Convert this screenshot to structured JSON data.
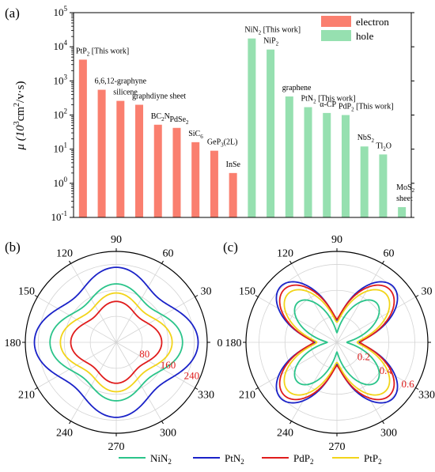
{
  "chart_data": [
    {
      "panel_label": "(a)",
      "type": "bar",
      "ylabel_parts": [
        "μ (10",
        "3",
        "cm",
        "2",
        "/v·s)"
      ],
      "yscale": "log",
      "ylim": [
        0.1,
        100000
      ],
      "ytick_labels": [
        {
          "base": "10",
          "exp": "-1",
          "value": 0.1
        },
        {
          "base": "10",
          "exp": "0",
          "value": 1
        },
        {
          "base": "10",
          "exp": "1",
          "value": 10
        },
        {
          "base": "10",
          "exp": "2",
          "value": 100
        },
        {
          "base": "10",
          "exp": "3",
          "value": 1000
        },
        {
          "base": "10",
          "exp": "4",
          "value": 10000
        },
        {
          "base": "10",
          "exp": "5",
          "value": 100000
        }
      ],
      "legend_position": "top-right",
      "series": [
        {
          "name": "electron",
          "color": "#fa7f6f"
        },
        {
          "name": "hole",
          "color": "#96e0b0"
        }
      ],
      "bars": [
        {
          "parts": [
            [
              "PtP",
              ""
            ],
            [
              "2",
              "sub"
            ],
            [
              " [This work]",
              ""
            ]
          ],
          "value": 4200,
          "series": "electron"
        },
        {
          "parts": [
            [
              "6,6,12-graphyne",
              ""
            ]
          ],
          "value": 550,
          "series": "electron"
        },
        {
          "parts": [
            [
              "silicene",
              ""
            ]
          ],
          "value": 260,
          "series": "electron"
        },
        {
          "parts": [
            [
              "graphdiyne sheet",
              ""
            ]
          ],
          "value": 200,
          "series": "electron"
        },
        {
          "parts": [
            [
              "BC",
              ""
            ],
            [
              "2",
              "sub"
            ],
            [
              "N",
              ""
            ]
          ],
          "value": 52,
          "series": "electron"
        },
        {
          "parts": [
            [
              "PdSe",
              ""
            ],
            [
              "2",
              "sub"
            ]
          ],
          "value": 42,
          "series": "electron"
        },
        {
          "parts": [
            [
              "SiC",
              ""
            ],
            [
              "6",
              "sub"
            ]
          ],
          "value": 16,
          "series": "electron"
        },
        {
          "parts": [
            [
              "GeP",
              ""
            ],
            [
              "3",
              "sub"
            ],
            [
              "(2L)",
              ""
            ]
          ],
          "value": 9,
          "series": "electron"
        },
        {
          "parts": [
            [
              "InSe",
              ""
            ]
          ],
          "value": 2,
          "series": "electron"
        },
        {
          "parts": [
            [
              "NiN",
              ""
            ],
            [
              "2",
              "sub"
            ],
            [
              " [This work]",
              ""
            ]
          ],
          "value": 17500,
          "series": "hole"
        },
        {
          "parts": [
            [
              "NiP",
              ""
            ],
            [
              "2",
              "sub"
            ]
          ],
          "value": 8300,
          "series": "hole"
        },
        {
          "parts": [
            [
              "graphene",
              ""
            ]
          ],
          "value": 350,
          "series": "hole"
        },
        {
          "parts": [
            [
              "PtN",
              ""
            ],
            [
              "2",
              "sub"
            ],
            [
              " [This work]",
              ""
            ]
          ],
          "value": 170,
          "series": "hole"
        },
        {
          "parts": [
            [
              "α-CP",
              ""
            ]
          ],
          "value": 115,
          "series": "hole"
        },
        {
          "parts": [
            [
              "PdP",
              ""
            ],
            [
              "2",
              "sub"
            ],
            [
              " [This work]",
              ""
            ]
          ],
          "value": 100,
          "series": "hole"
        },
        {
          "parts": [
            [
              "NbS",
              ""
            ],
            [
              "2",
              "sub"
            ]
          ],
          "value": 12,
          "series": "hole"
        },
        {
          "parts": [
            [
              "Tl",
              ""
            ],
            [
              "2",
              "sub"
            ],
            [
              "O",
              ""
            ]
          ],
          "value": 7,
          "series": "hole"
        },
        {
          "parts": [
            [
              "MoS",
              ""
            ],
            [
              "2",
              "sub"
            ]
          ],
          "extra_line": "sheet",
          "value": 0.2,
          "series": "hole"
        }
      ]
    },
    {
      "panel_label": "(b)",
      "type": "polar",
      "angle_labels": [
        "0",
        "30",
        "60",
        "90",
        "120",
        "150",
        "180",
        "210",
        "240",
        "270",
        "300",
        "330"
      ],
      "radial_max": 280,
      "radial_ticks": [
        80,
        160,
        240
      ],
      "radial_tick_labels": [
        "80",
        "160",
        "240"
      ],
      "series": [
        {
          "name": "NiN2",
          "color": "#2bc48a",
          "r0": 204,
          "r90": 180
        },
        {
          "name": "PtN2",
          "color": "#1a22c8",
          "r0": 252,
          "r90": 231
        },
        {
          "name": "PdP2",
          "color": "#e01c1c",
          "r0": 140,
          "r90": 126
        },
        {
          "name": "PtP2",
          "color": "#f2d41a",
          "r0": 172,
          "r90": 152
        }
      ]
    },
    {
      "panel_label": "(c)",
      "type": "polar",
      "angle_labels": [
        "0",
        "30",
        "60",
        "90",
        "120",
        "150",
        "180",
        "210",
        "240",
        "270",
        "300",
        "330"
      ],
      "radial_max": 0.7,
      "radial_ticks": [
        0.2,
        0.4,
        0.6
      ],
      "radial_tick_labels": [
        "0.2",
        "0.4",
        "0.6"
      ],
      "series": [
        {
          "name": "NiN2",
          "color": "#2bc48a",
          "r0": 0.075,
          "r45": 0.43
        },
        {
          "name": "PtN2",
          "color": "#1a22c8",
          "r0": 0.17,
          "r45": 0.61
        },
        {
          "name": "PdP2",
          "color": "#e01c1c",
          "r0": 0.18,
          "r45": 0.575
        },
        {
          "name": "PtP2",
          "color": "#f2d41a",
          "r0": 0.155,
          "r45": 0.53
        }
      ]
    }
  ],
  "legend": [
    {
      "base": "NiN",
      "sub": "2",
      "color": "#2bc48a"
    },
    {
      "base": "PtN",
      "sub": "2",
      "color": "#1a22c8"
    },
    {
      "base": "PdP",
      "sub": "2",
      "color": "#e01c1c"
    },
    {
      "base": "PtP",
      "sub": "2",
      "color": "#f2d41a"
    }
  ]
}
